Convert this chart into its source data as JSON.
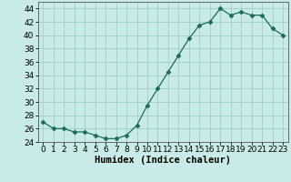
{
  "x": [
    0,
    1,
    2,
    3,
    4,
    5,
    6,
    7,
    8,
    9,
    10,
    11,
    12,
    13,
    14,
    15,
    16,
    17,
    18,
    19,
    20,
    21,
    22,
    23
  ],
  "y": [
    27,
    26,
    26,
    25.5,
    25.5,
    25,
    24.5,
    24.5,
    25,
    26.5,
    29.5,
    32,
    34.5,
    37,
    39.5,
    41.5,
    42,
    44,
    43,
    43.5,
    43,
    43,
    41,
    40
  ],
  "line_color": "#1a6b5a",
  "marker": "D",
  "marker_size": 2.5,
  "bg_color": "#c8ebe8",
  "grid_color": "#a0ccc8",
  "xlabel": "Humidex (Indice chaleur)",
  "ylim": [
    24,
    45
  ],
  "xlim": [
    -0.5,
    23.5
  ],
  "yticks": [
    24,
    26,
    28,
    30,
    32,
    34,
    36,
    38,
    40,
    42,
    44
  ],
  "xticks": [
    0,
    1,
    2,
    3,
    4,
    5,
    6,
    7,
    8,
    9,
    10,
    11,
    12,
    13,
    14,
    15,
    16,
    17,
    18,
    19,
    20,
    21,
    22,
    23
  ],
  "xlabel_fontsize": 7.5,
  "tick_fontsize": 6.5
}
